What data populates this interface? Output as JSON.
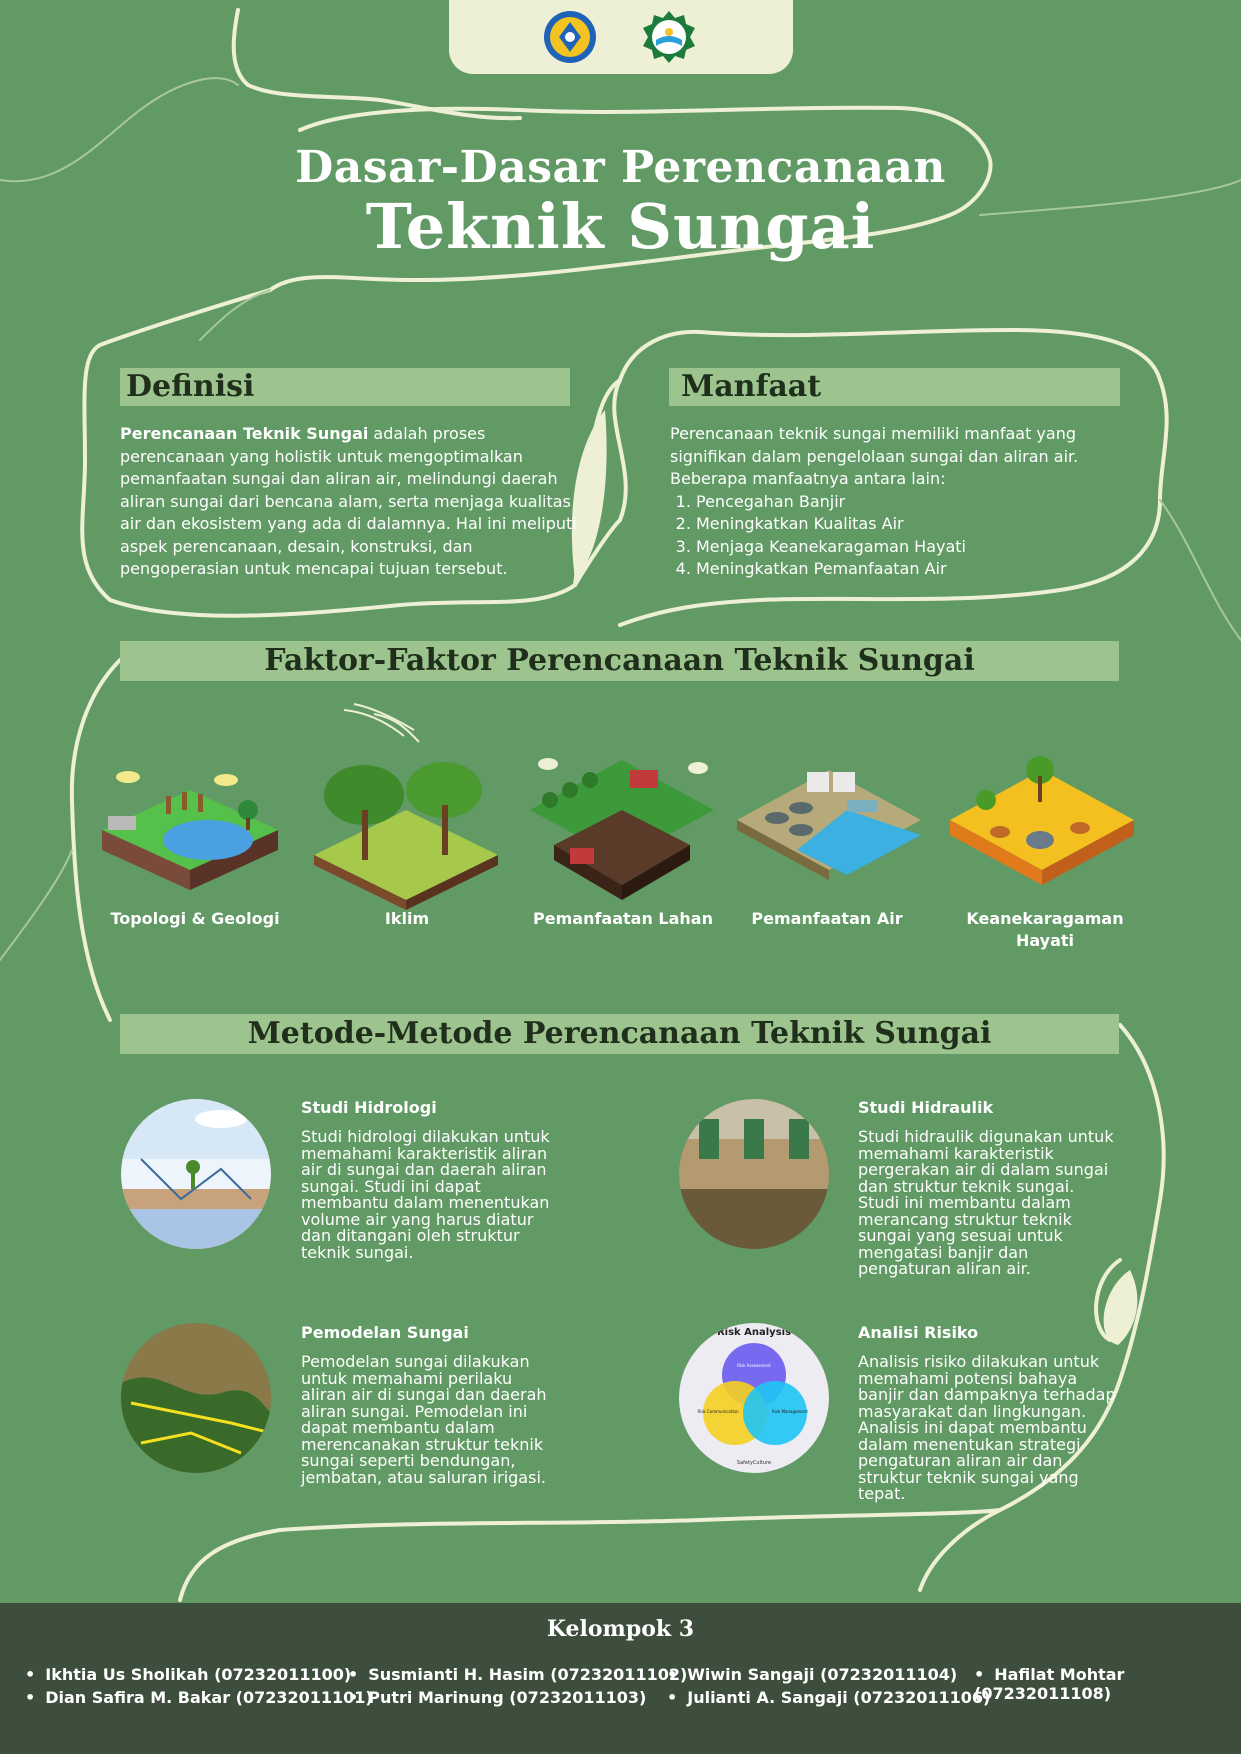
{
  "header": {
    "title_line1": "Dasar-Dasar Perencanaan",
    "title_line2": "Teknik Sungai"
  },
  "definisi": {
    "heading": "Definisi",
    "bold_term": "Perencanaan Teknik Sungai",
    "text": " adalah proses perencanaan yang holistik untuk mengoptimalkan pemanfaatan sungai dan aliran air, melindungi daerah aliran sungai dari bencana alam, serta menjaga kualitas air dan ekosistem yang ada di dalamnya. Hal ini meliputi aspek perencanaan, desain, konstruksi, dan pengoperasian untuk mencapai tujuan tersebut."
  },
  "manfaat": {
    "heading": "Manfaat",
    "intro": "Perencanaan teknik sungai memiliki manfaat yang signifikan dalam pengelolaan sungai dan aliran air. Beberapa manfaatnya antara lain:",
    "items": [
      "Pencegahan Banjir",
      "Meningkatkan Kualitas Air",
      "Menjaga Keanekaragaman Hayati",
      "Meningkatkan Pemanfaatan Air"
    ]
  },
  "faktor": {
    "heading": "Faktor-Faktor Perencanaan Teknik Sungai",
    "items": [
      {
        "label": "Topologi & Geologi",
        "icon": "geology-illustration"
      },
      {
        "label": "Iklim",
        "icon": "climate-illustration"
      },
      {
        "label": "Pemanfaatan Lahan",
        "icon": "land-use-illustration"
      },
      {
        "label": "Pemanfaatan Air",
        "icon": "water-use-illustration"
      },
      {
        "label": "Keanekaragaman Hayati",
        "icon": "biodiversity-illustration"
      }
    ]
  },
  "metode": {
    "heading": "Metode-Metode Perencanaan Teknik Sungai",
    "items": [
      {
        "title": "Studi Hidrologi",
        "text": "Studi hidrologi dilakukan untuk memahami karakteristik aliran air di sungai dan daerah aliran sungai. Studi ini dapat membantu dalam menentukan volume air yang harus diatur dan ditangani oleh struktur teknik sungai."
      },
      {
        "title": "Studi Hidraulik",
        "text": "Studi hidraulik digunakan untuk memahami karakteristik pergerakan air di dalam sungai dan struktur teknik sungai. Studi ini membantu dalam merancang struktur teknik sungai yang sesuai untuk mengatasi banjir dan pengaturan aliran air."
      },
      {
        "title": "Pemodelan Sungai",
        "text": "Pemodelan sungai dilakukan untuk memahami perilaku aliran air di sungai dan daerah aliran sungai. Pemodelan ini dapat membantu dalam merencanakan struktur teknik sungai seperti bendungan, jembatan, atau saluran irigasi."
      },
      {
        "title": "Analisi Risiko",
        "text": "Analisis risiko dilakukan untuk memahami potensi bahaya banjir dan dampaknya terhadap masyarakat dan lingkungan. Analisis ini dapat membantu dalam menentukan strategi pengaturan aliran air dan struktur teknik sungai yang tepat."
      }
    ],
    "risk_diagram": {
      "title": "Risk Analysis",
      "c1": "Risk Assessment",
      "c2": "Risk Communication",
      "c3": "Risk Management",
      "brand": "SafetyCulture"
    }
  },
  "footer": {
    "group": "Kelompok 3",
    "members": [
      "Ikhtia Us Sholikah (07232011100)",
      "Dian Safira M. Bakar (07232011101)",
      "Susmianti H. Hasim (07232011102)",
      "Putri Marinung (07232011103)",
      "Wiwin Sangaji (07232011104)",
      "Julianti A. Sangaji (07232011106)",
      "Hafilat Mohtar (07232011108)"
    ]
  },
  "colors": {
    "background": "#619a64",
    "band": "#9dc48e",
    "cream": "#eef0d6",
    "footer": "#3d4e3c"
  }
}
